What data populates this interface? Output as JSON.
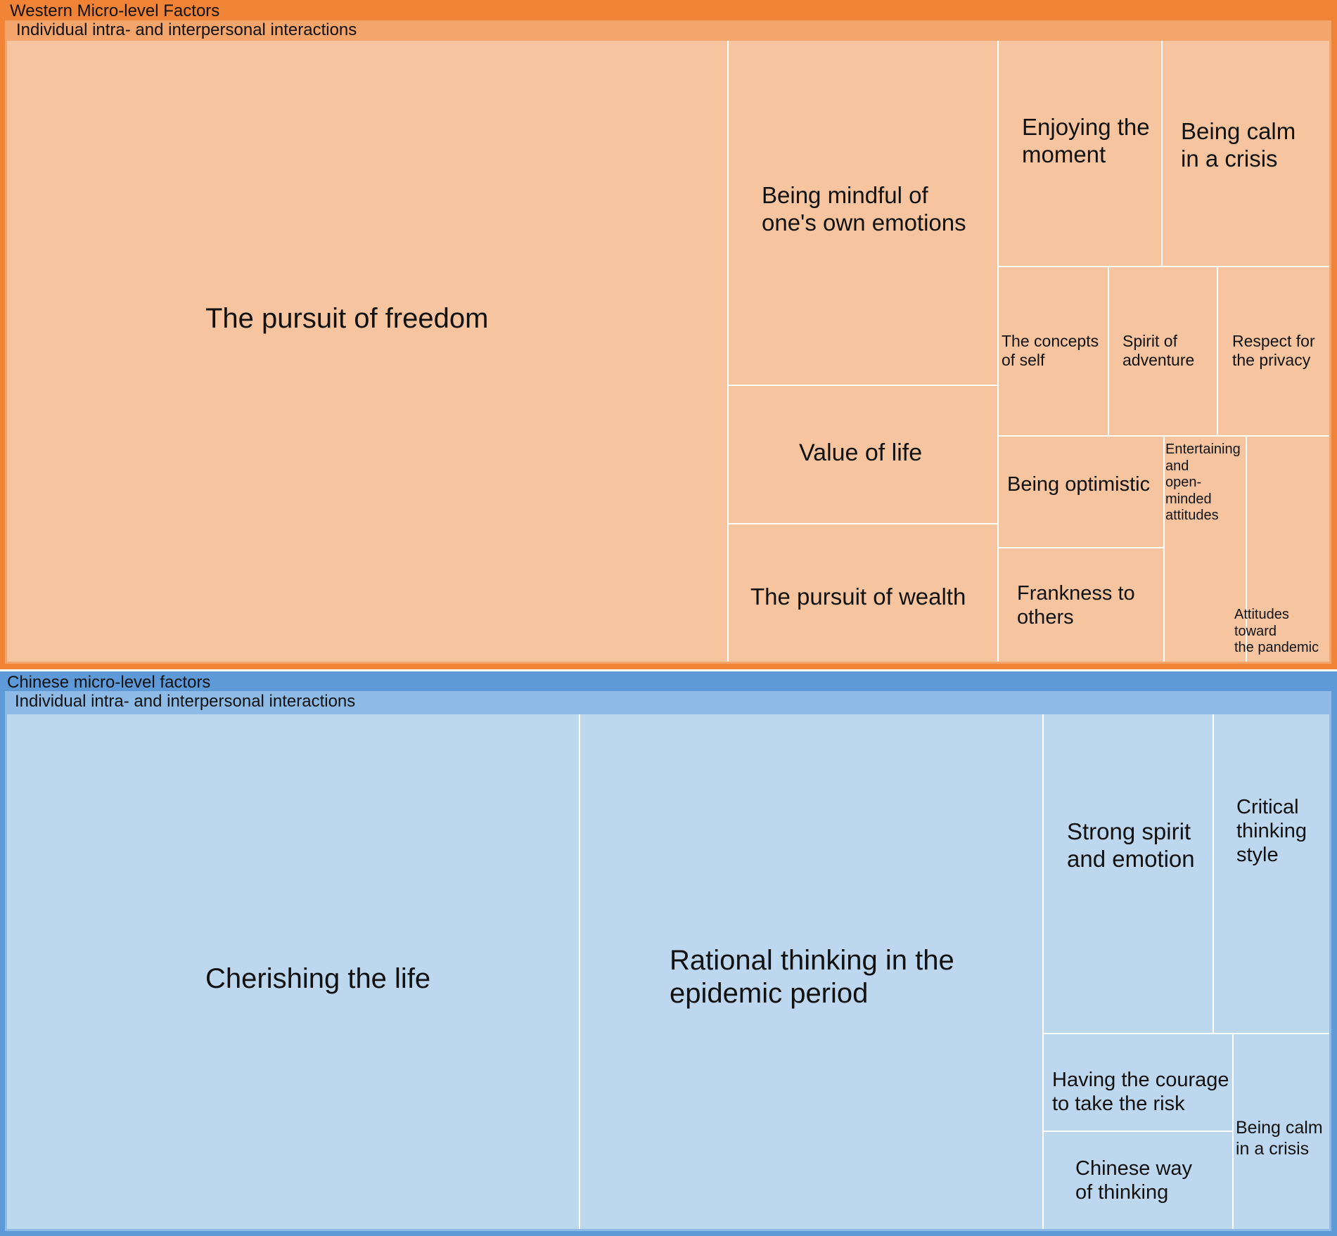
{
  "chart_data": [
    {
      "type": "treemap",
      "title": "Western Micro-level Factors",
      "color": "#f08336",
      "group_color": "#f4a56b",
      "tile_color": "#f6c5a0",
      "groups": [
        {
          "name": "Individual intra- and interpersonal interactions",
          "items": [
            {
              "label": "The pursuit of freedom"
            },
            {
              "label": "Being mindful of\none's own emotions"
            },
            {
              "label": "Value of life"
            },
            {
              "label": "The pursuit of wealth"
            },
            {
              "label": "Enjoying the\nmoment"
            },
            {
              "label": "Being calm\nin a crisis"
            },
            {
              "label": "The concepts\nof self"
            },
            {
              "label": "Spirit of\nadventure"
            },
            {
              "label": "Respect for\nthe privacy"
            },
            {
              "label": "Being optimistic"
            },
            {
              "label": "Frankness to\nothers"
            },
            {
              "label": "Entertaining\nand\nopen-minded\nattitudes"
            },
            {
              "label": "Attitudes\ntoward\nthe pandemic"
            }
          ]
        }
      ]
    },
    {
      "type": "treemap",
      "title": "Chinese micro-level factors",
      "color": "#5e9ad8",
      "group_color": "#8dbbe6",
      "tile_color": "#bdd7ef",
      "groups": [
        {
          "name": "Individual intra- and interpersonal interactions",
          "items": [
            {
              "label": "Cherishing the life"
            },
            {
              "label": "Rational thinking in the\nepidemic period"
            },
            {
              "label": "Strong spirit\nand emotion"
            },
            {
              "label": "Critical\nthinking\nstyle"
            },
            {
              "label": "Having the courage\nto take the risk"
            },
            {
              "label": "Chinese way\nof thinking"
            },
            {
              "label": "Being calm\nin a crisis"
            }
          ]
        }
      ]
    }
  ]
}
